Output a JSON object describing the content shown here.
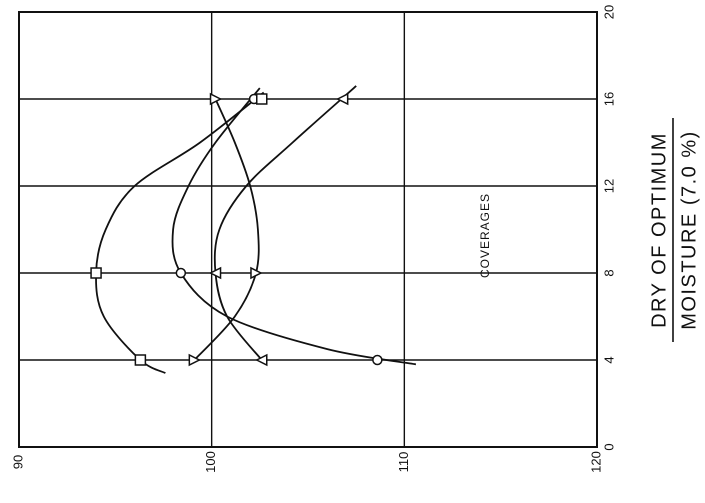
{
  "chart_data": {
    "type": "scatter",
    "orientation": "rotated-90",
    "title": "",
    "condition_label_line1": "DRY OF OPTIMUM",
    "condition_label_line2": "MOISTURE (7.0 %)",
    "xlabel": "COVERAGES",
    "ylabel": "",
    "xlim": [
      0,
      20
    ],
    "ylim": [
      90,
      120
    ],
    "x_ticks": [
      "0",
      "4",
      "8",
      "12",
      "16",
      "20"
    ],
    "y_ticks": [
      "90",
      "100",
      "110",
      "120"
    ],
    "grid": true,
    "series": [
      {
        "marker": "circle",
        "points": [
          [
            16,
            102.2
          ],
          [
            8,
            98.4
          ],
          [
            4,
            108.6
          ]
        ],
        "curve": [
          [
            16.5,
            102.5
          ],
          [
            14,
            100.2
          ],
          [
            12,
            98.8
          ],
          [
            10,
            98.0
          ],
          [
            8,
            98.4
          ],
          [
            6,
            100.8
          ],
          [
            4.5,
            106.0
          ],
          [
            3.8,
            110.6
          ]
        ]
      },
      {
        "marker": "square",
        "points": [
          [
            16,
            102.6
          ],
          [
            8,
            94.0
          ],
          [
            4,
            96.3
          ]
        ],
        "curve": [
          [
            16.3,
            102.7
          ],
          [
            14,
            99.4
          ],
          [
            12,
            96.0
          ],
          [
            10,
            94.5
          ],
          [
            8,
            94.0
          ],
          [
            6,
            94.4
          ],
          [
            4,
            96.3
          ],
          [
            3.4,
            97.6
          ]
        ]
      },
      {
        "marker": "triangle-left",
        "points": [
          [
            16,
            106.8
          ],
          [
            8,
            100.2
          ],
          [
            4,
            102.6
          ]
        ],
        "curve": [
          [
            16.6,
            107.5
          ],
          [
            14,
            104.2
          ],
          [
            12,
            101.8
          ],
          [
            10,
            100.4
          ],
          [
            8,
            100.2
          ],
          [
            6,
            100.8
          ],
          [
            4,
            102.6
          ]
        ]
      },
      {
        "marker": "triangle-right",
        "points": [
          [
            16,
            100.2
          ],
          [
            8,
            102.3
          ],
          [
            4,
            99.1
          ]
        ],
        "curve": [
          [
            16,
            100.2
          ],
          [
            14,
            101.2
          ],
          [
            12,
            102.0
          ],
          [
            10,
            102.4
          ],
          [
            8,
            102.3
          ],
          [
            6,
            101.2
          ],
          [
            4,
            99.1
          ]
        ]
      }
    ]
  }
}
